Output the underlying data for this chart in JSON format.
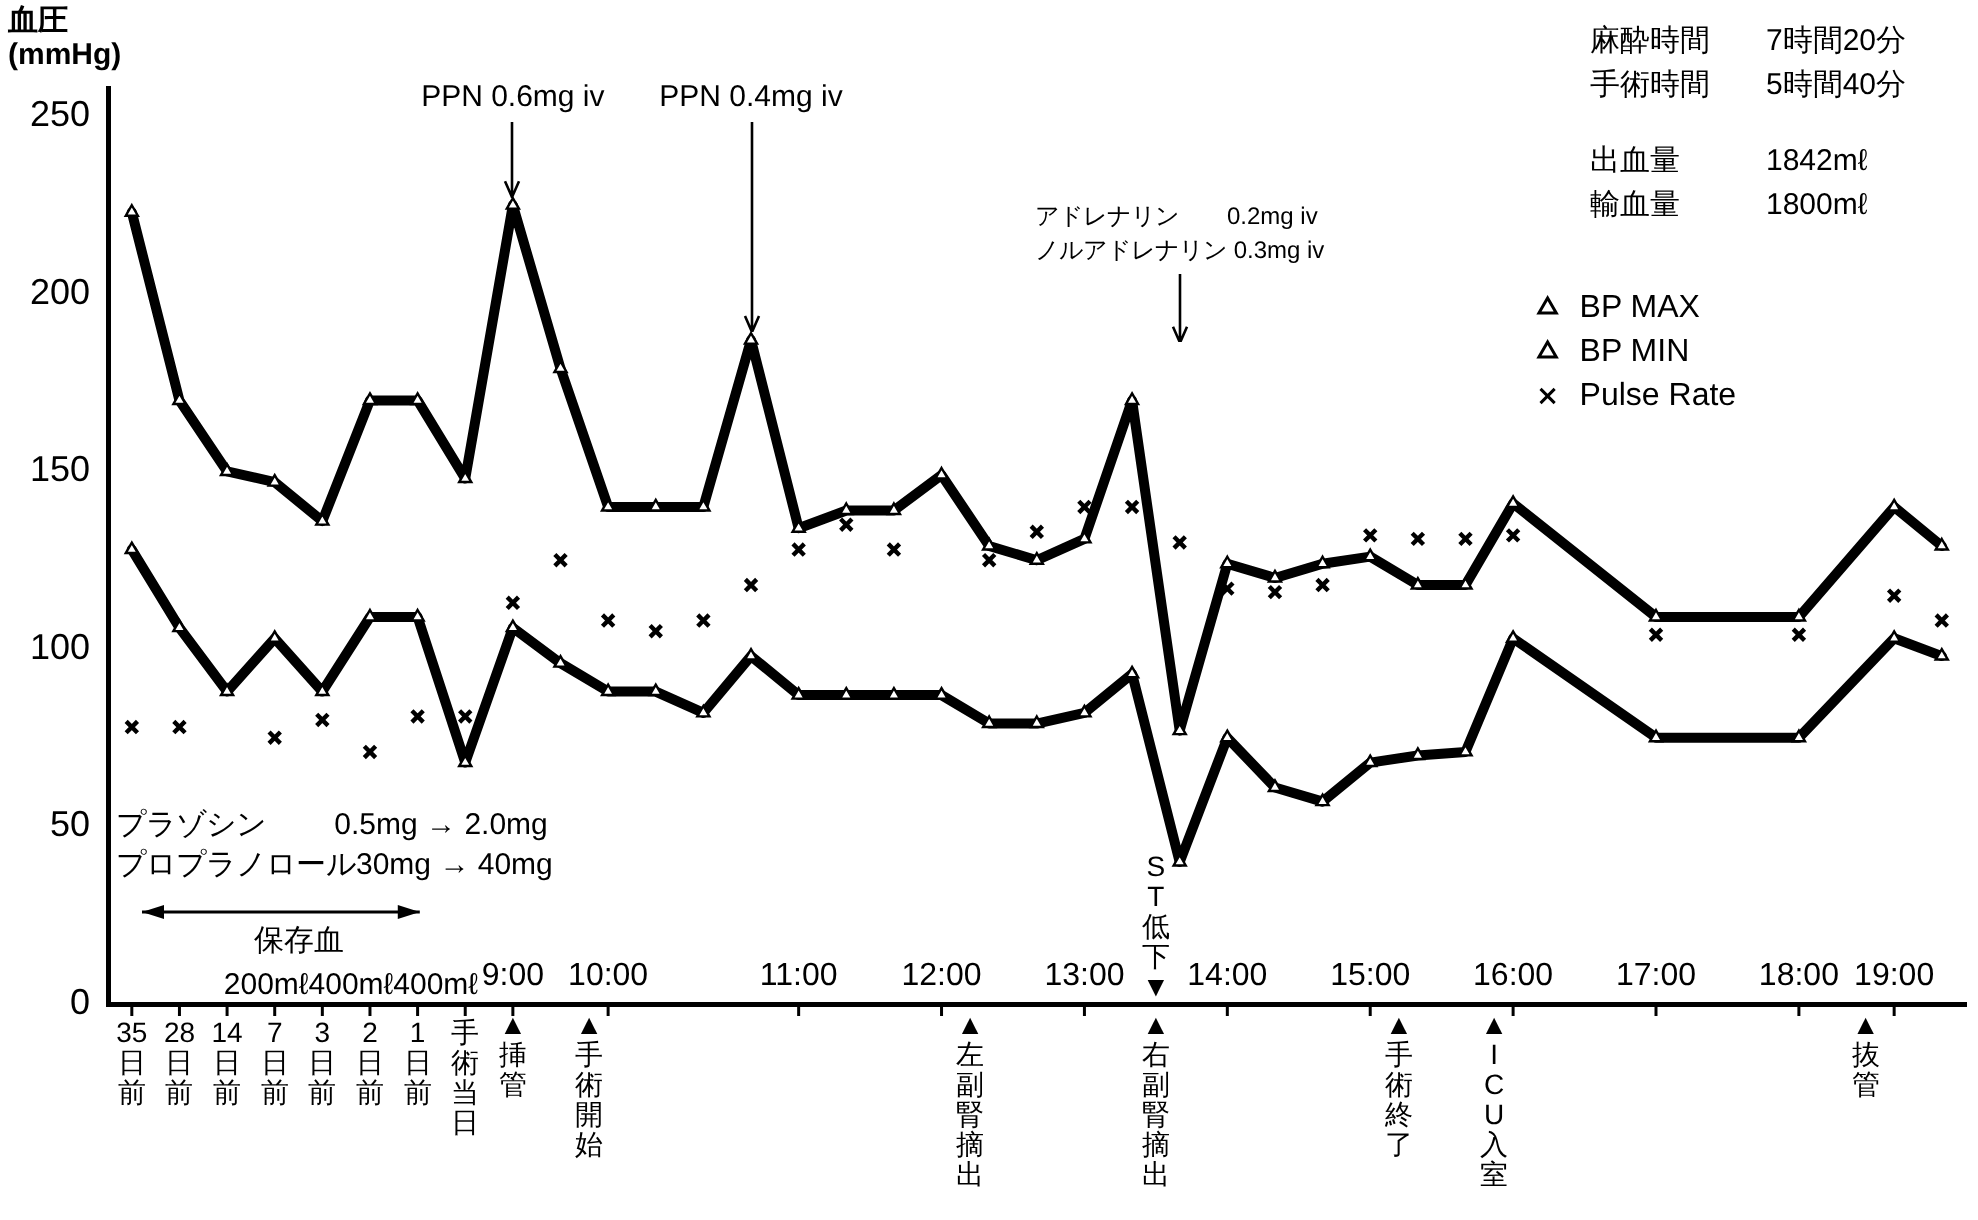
{
  "chart_data": {
    "type": "line",
    "ylabel": "血圧\n(mmHg)",
    "categories": [
      "35日前",
      "28日前",
      "14日前",
      "7日前",
      "3日前",
      "2日前",
      "1日前",
      "手術当日",
      "9:00",
      null,
      "10:00",
      null,
      null,
      null,
      "11:00",
      null,
      null,
      "12:00",
      null,
      null,
      "13:00",
      null,
      null,
      "14:00",
      null,
      null,
      "15:00",
      null,
      null,
      "16:00",
      null,
      null,
      "17:00",
      null,
      null,
      "18:00",
      null,
      "19:00",
      null
    ],
    "ylim": [
      0,
      258
    ],
    "yticks": [
      0,
      50,
      100,
      150,
      200,
      250
    ],
    "grid": false,
    "legend": "top right",
    "series": [
      {
        "name": "BP MAX",
        "color": "#000000",
        "marker": "triangle",
        "values": [
          223,
          170,
          150,
          147,
          136,
          170,
          170,
          148,
          225,
          179,
          140,
          140,
          140,
          187,
          134,
          139,
          139,
          149,
          129,
          125,
          131,
          170,
          77,
          124,
          120,
          124,
          126,
          118,
          118,
          141,
          null,
          null,
          109,
          null,
          null,
          109,
          null,
          140,
          129
        ]
      },
      {
        "name": "BP MIN",
        "color": "#000000",
        "marker": "triangle",
        "values": [
          128,
          106,
          88,
          103,
          88,
          109,
          109,
          68,
          106,
          96,
          88,
          88,
          82,
          98,
          87,
          87,
          87,
          87,
          79,
          79,
          82,
          93,
          40,
          75,
          61,
          57,
          68,
          70,
          71,
          103,
          null,
          null,
          75,
          null,
          null,
          75,
          null,
          103,
          98
        ]
      },
      {
        "name": "Pulse Rate",
        "type": "scatter",
        "color": "#000000",
        "marker": "cross",
        "values": [
          78,
          78,
          null,
          75,
          80,
          71,
          81,
          81,
          113,
          125,
          108,
          105,
          108,
          118,
          128,
          135,
          128,
          null,
          125,
          133,
          140,
          140,
          130,
          117,
          116,
          118,
          132,
          131,
          131,
          132,
          null,
          null,
          104,
          null,
          null,
          104,
          null,
          115,
          108
        ]
      }
    ],
    "annotations": [
      "麻酔時間 7時間20分",
      "手術時間 5時間40分",
      "出血量 1842mℓ",
      "輸血量 1800mℓ",
      "プラゾシン　　 0.5mg → 2.0mg",
      "プロプラノロール30mg → 40mg",
      "保存血",
      "200mℓ400mℓ400mℓ",
      {
        "text": "PPN 0.6mg iv",
        "x": "9:00",
        "y": 225
      },
      {
        "text": "PPN 0.4mg iv",
        "y": 187
      },
      "アドレナリン　　0.2mg iv\nノルアドレナリン 0.3mg iv",
      "ST低下▼",
      "▲挿管",
      "▲手術開始",
      "▲左副腎摘出",
      "▲右副腎摘出",
      "▲手術終了",
      "▲ICU入室",
      "▲抜管"
    ]
  }
}
